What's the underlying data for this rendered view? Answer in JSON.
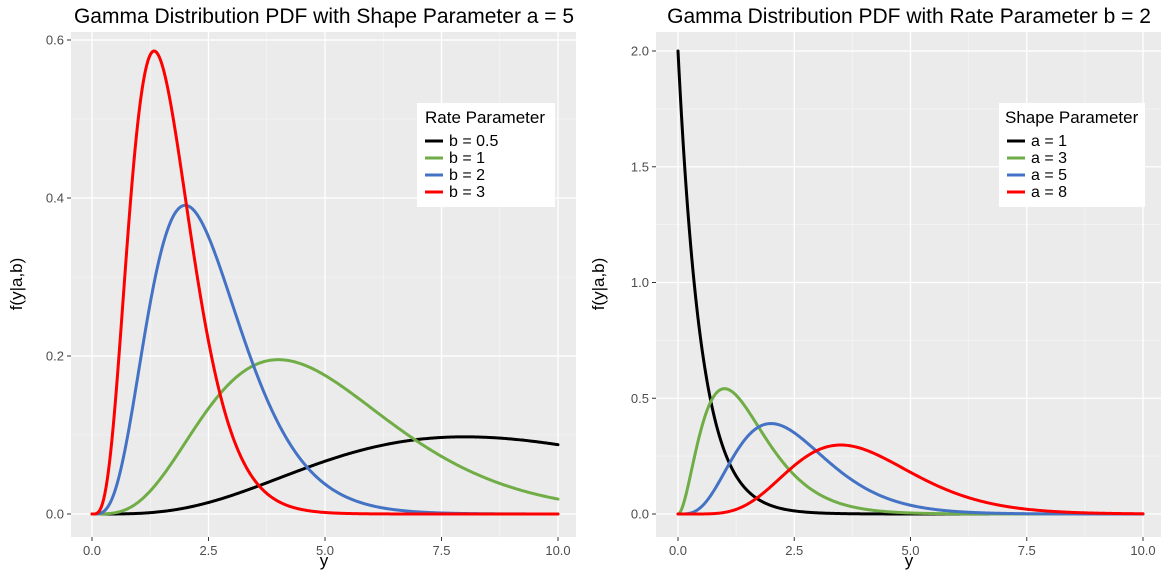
{
  "chart_data": [
    {
      "type": "line",
      "title": "Gamma Distribution PDF with Shape Parameter a = 5",
      "xlabel": "y",
      "ylabel": "f(y|a,b)",
      "xlim": [
        0,
        10
      ],
      "ylim": [
        0,
        0.6
      ],
      "x_ticks": [
        0,
        2.5,
        5,
        7.5,
        10
      ],
      "x_tick_labels": [
        "0.0",
        "2.5",
        "5.0",
        "7.5",
        "10.0"
      ],
      "y_ticks": [
        0,
        0.2,
        0.4,
        0.6
      ],
      "y_tick_labels": [
        "0.0",
        "0.2",
        "0.4",
        "0.6"
      ],
      "grid": true,
      "legend_title": "Rate Parameter",
      "legend_position": "top-right",
      "series": [
        {
          "name": "b = 0.5",
          "color": "#000000",
          "shape": 5,
          "rate": 0.5
        },
        {
          "name": "b = 1",
          "color": "#70ad47",
          "shape": 5,
          "rate": 1
        },
        {
          "name": "b = 2",
          "color": "#4472c4",
          "shape": 5,
          "rate": 2
        },
        {
          "name": "b = 3",
          "color": "#ff0000",
          "shape": 5,
          "rate": 3
        }
      ]
    },
    {
      "type": "line",
      "title": "Gamma Distribution PDF with Rate Parameter b = 2",
      "xlabel": "y",
      "ylabel": "f(y|a,b)",
      "xlim": [
        0,
        10
      ],
      "ylim": [
        0,
        2.0
      ],
      "x_ticks": [
        0,
        2.5,
        5,
        7.5,
        10
      ],
      "x_tick_labels": [
        "0.0",
        "2.5",
        "5.0",
        "7.5",
        "10.0"
      ],
      "y_ticks": [
        0,
        0.5,
        1,
        1.5,
        2
      ],
      "y_tick_labels": [
        "0.0",
        "0.5",
        "1.0",
        "1.5",
        "2.0"
      ],
      "grid": true,
      "legend_title": "Shape Parameter",
      "legend_position": "top-right",
      "series": [
        {
          "name": "a = 1",
          "color": "#000000",
          "shape": 1,
          "rate": 2
        },
        {
          "name": "a = 3",
          "color": "#70ad47",
          "shape": 3,
          "rate": 2
        },
        {
          "name": "a = 5",
          "color": "#4472c4",
          "shape": 5,
          "rate": 2
        },
        {
          "name": "a = 8",
          "color": "#ff0000",
          "shape": 8,
          "rate": 2
        }
      ]
    }
  ]
}
